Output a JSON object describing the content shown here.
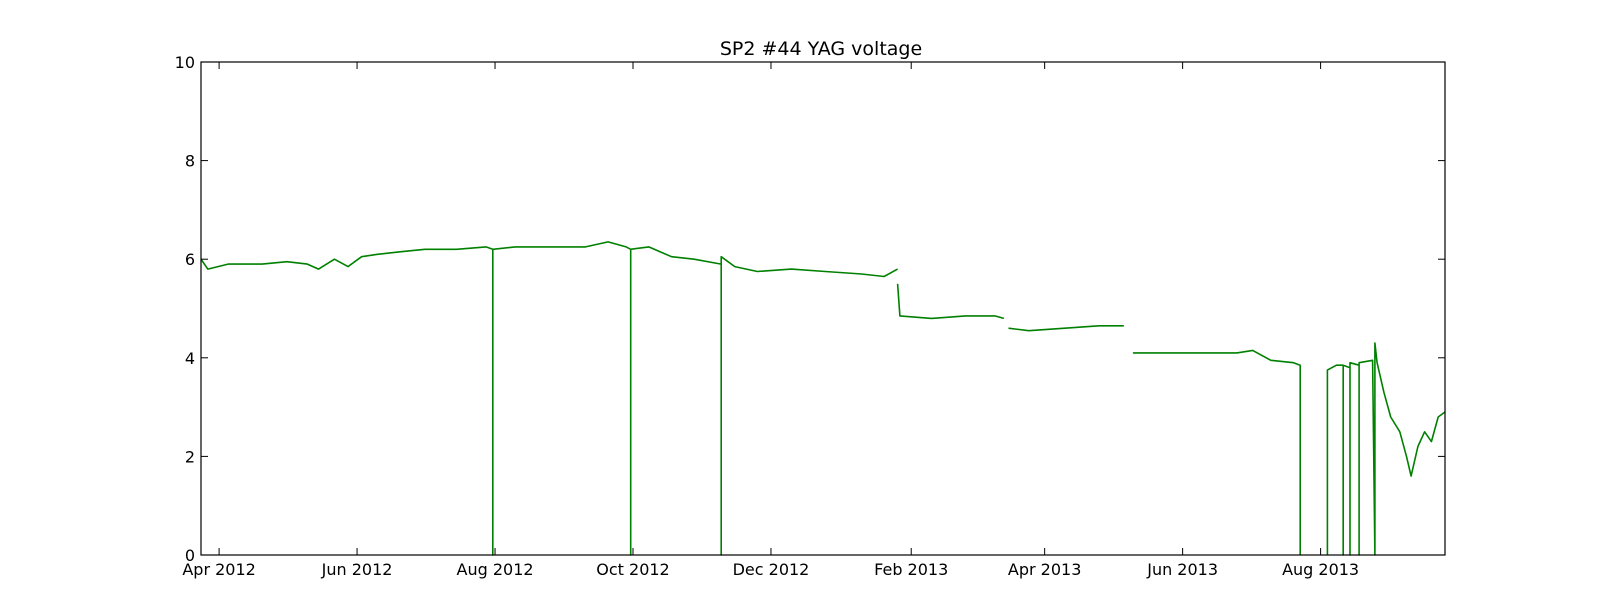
{
  "chart_data": {
    "type": "line",
    "title": "SP2 #44 YAG voltage",
    "xlabel": "",
    "ylabel": "",
    "ylim": [
      0,
      10
    ],
    "xlim": [
      "2012-03-24",
      "2013-09-25"
    ],
    "yticks": [
      0,
      2,
      4,
      6,
      8,
      10
    ],
    "xticks": [
      {
        "date": "2012-04-01",
        "label": "Apr 2012"
      },
      {
        "date": "2012-06-01",
        "label": "Jun 2012"
      },
      {
        "date": "2012-08-01",
        "label": "Aug 2012"
      },
      {
        "date": "2012-10-01",
        "label": "Oct 2012"
      },
      {
        "date": "2012-12-01",
        "label": "Dec 2012"
      },
      {
        "date": "2013-02-01",
        "label": "Feb 2013"
      },
      {
        "date": "2013-04-01",
        "label": "Apr 2013"
      },
      {
        "date": "2013-06-01",
        "label": "Jun 2013"
      },
      {
        "date": "2013-08-01",
        "label": "Aug 2013"
      }
    ],
    "grid": false,
    "series": [
      {
        "color": "#008000",
        "segments": [
          [
            [
              "2012-03-24",
              6.0
            ],
            [
              "2012-03-27",
              5.8
            ],
            [
              "2012-04-05",
              5.9
            ],
            [
              "2012-04-20",
              5.9
            ],
            [
              "2012-05-01",
              5.95
            ],
            [
              "2012-05-10",
              5.9
            ],
            [
              "2012-05-15",
              5.8
            ],
            [
              "2012-05-22",
              6.0
            ],
            [
              "2012-05-28",
              5.85
            ],
            [
              "2012-06-03",
              6.05
            ],
            [
              "2012-06-10",
              6.1
            ],
            [
              "2012-06-20",
              6.15
            ],
            [
              "2012-07-01",
              6.2
            ],
            [
              "2012-07-15",
              6.2
            ],
            [
              "2012-07-28",
              6.25
            ],
            [
              "2012-07-31",
              6.2
            ],
            [
              "2012-07-31",
              0.0
            ],
            [
              "2012-07-31",
              6.2
            ],
            [
              "2012-08-10",
              6.25
            ],
            [
              "2012-08-25",
              6.25
            ],
            [
              "2012-09-10",
              6.25
            ],
            [
              "2012-09-20",
              6.35
            ],
            [
              "2012-09-28",
              6.25
            ],
            [
              "2012-09-30",
              6.2
            ],
            [
              "2012-09-30",
              0.0
            ],
            [
              "2012-09-30",
              6.2
            ],
            [
              "2012-10-08",
              6.25
            ],
            [
              "2012-10-18",
              6.05
            ],
            [
              "2012-10-28",
              6.0
            ],
            [
              "2012-11-09",
              5.9
            ],
            [
              "2012-11-09",
              0.0
            ],
            [
              "2012-11-09",
              6.05
            ],
            [
              "2012-11-15",
              5.85
            ],
            [
              "2012-11-25",
              5.75
            ],
            [
              "2012-12-10",
              5.8
            ],
            [
              "2012-12-25",
              5.75
            ],
            [
              "2013-01-10",
              5.7
            ],
            [
              "2013-01-20",
              5.65
            ],
            [
              "2013-01-26",
              5.8
            ]
          ],
          [
            [
              "2013-01-26",
              5.5
            ],
            [
              "2013-01-27",
              4.85
            ],
            [
              "2013-02-10",
              4.8
            ],
            [
              "2013-02-25",
              4.85
            ],
            [
              "2013-03-10",
              4.85
            ],
            [
              "2013-03-14",
              4.8
            ]
          ],
          [
            [
              "2013-03-16",
              4.6
            ],
            [
              "2013-03-25",
              4.55
            ],
            [
              "2013-04-10",
              4.6
            ],
            [
              "2013-04-25",
              4.65
            ],
            [
              "2013-05-06",
              4.65
            ]
          ],
          [
            [
              "2013-05-10",
              4.1
            ],
            [
              "2013-05-25",
              4.1
            ],
            [
              "2013-06-10",
              4.1
            ],
            [
              "2013-06-25",
              4.1
            ],
            [
              "2013-07-02",
              4.15
            ],
            [
              "2013-07-10",
              3.95
            ],
            [
              "2013-07-20",
              3.9
            ],
            [
              "2013-07-23",
              3.85
            ],
            [
              "2013-07-23",
              0.0
            ]
          ],
          [
            [
              "2013-08-04",
              0.0
            ],
            [
              "2013-08-04",
              3.75
            ],
            [
              "2013-08-08",
              3.85
            ],
            [
              "2013-08-11",
              3.85
            ],
            [
              "2013-08-11",
              0.0
            ],
            [
              "2013-08-11",
              3.85
            ],
            [
              "2013-08-14",
              3.8
            ],
            [
              "2013-08-14",
              0.0
            ],
            [
              "2013-08-14",
              3.9
            ],
            [
              "2013-08-18",
              3.85
            ],
            [
              "2013-08-18",
              0.0
            ],
            [
              "2013-08-18",
              3.9
            ],
            [
              "2013-08-24",
              3.95
            ],
            [
              "2013-08-25",
              0.0
            ],
            [
              "2013-08-25",
              4.3
            ],
            [
              "2013-08-26",
              3.9
            ],
            [
              "2013-08-29",
              3.3
            ],
            [
              "2013-09-01",
              2.8
            ],
            [
              "2013-09-05",
              2.5
            ],
            [
              "2013-09-08",
              2.0
            ],
            [
              "2013-09-10",
              1.6
            ],
            [
              "2013-09-13",
              2.2
            ],
            [
              "2013-09-16",
              2.5
            ],
            [
              "2013-09-19",
              2.3
            ],
            [
              "2013-09-22",
              2.8
            ],
            [
              "2013-09-25",
              2.9
            ]
          ]
        ]
      }
    ]
  }
}
